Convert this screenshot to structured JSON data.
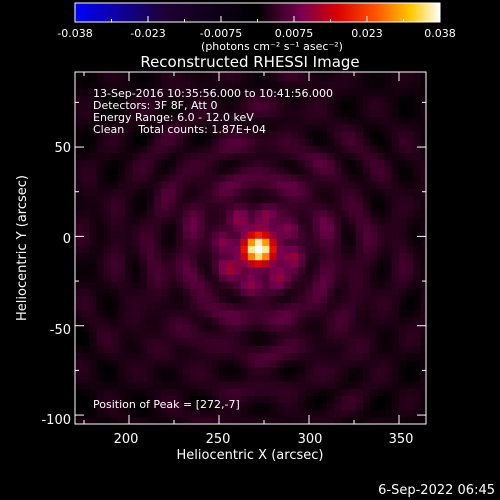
{
  "chart_data": {
    "type": "heatmap",
    "title": "Reconstructed RHESSI Image",
    "colorbar": {
      "min": -0.038,
      "max": 0.038,
      "ticks": [
        "-0.038",
        "-0.023",
        "-0.0075",
        "0.0075",
        "0.023",
        "0.038"
      ],
      "label": "(photons cm⁻² s⁻¹ asec⁻²)",
      "colormap": "blue-black-red-yellow-white"
    },
    "xlabel": "Heliocentric X (arcsec)",
    "ylabel": "Heliocentric Y (arcsec)",
    "xlim": [
      170,
      365
    ],
    "ylim": [
      -105,
      92
    ],
    "xticks": [
      200,
      250,
      300,
      350
    ],
    "yticks": [
      50,
      0,
      -50,
      -100
    ],
    "annotations": [
      "13-Sep-2016 10:35:56.000 to 10:41:56.000",
      "Detectors: 3F 8F, Att 0",
      "Energy Range: 6.0 - 12.0 keV",
      "Clean    Total counts: 1.87E+04"
    ],
    "peak_label": "Position of Peak = [272,-7]",
    "peak": {
      "x": 272,
      "y": -7,
      "value": 0.038
    },
    "background_level": 0.004,
    "pixel_size_arcsec": 4
  },
  "footer": {
    "timestamp": "6-Sep-2022 06:45"
  }
}
